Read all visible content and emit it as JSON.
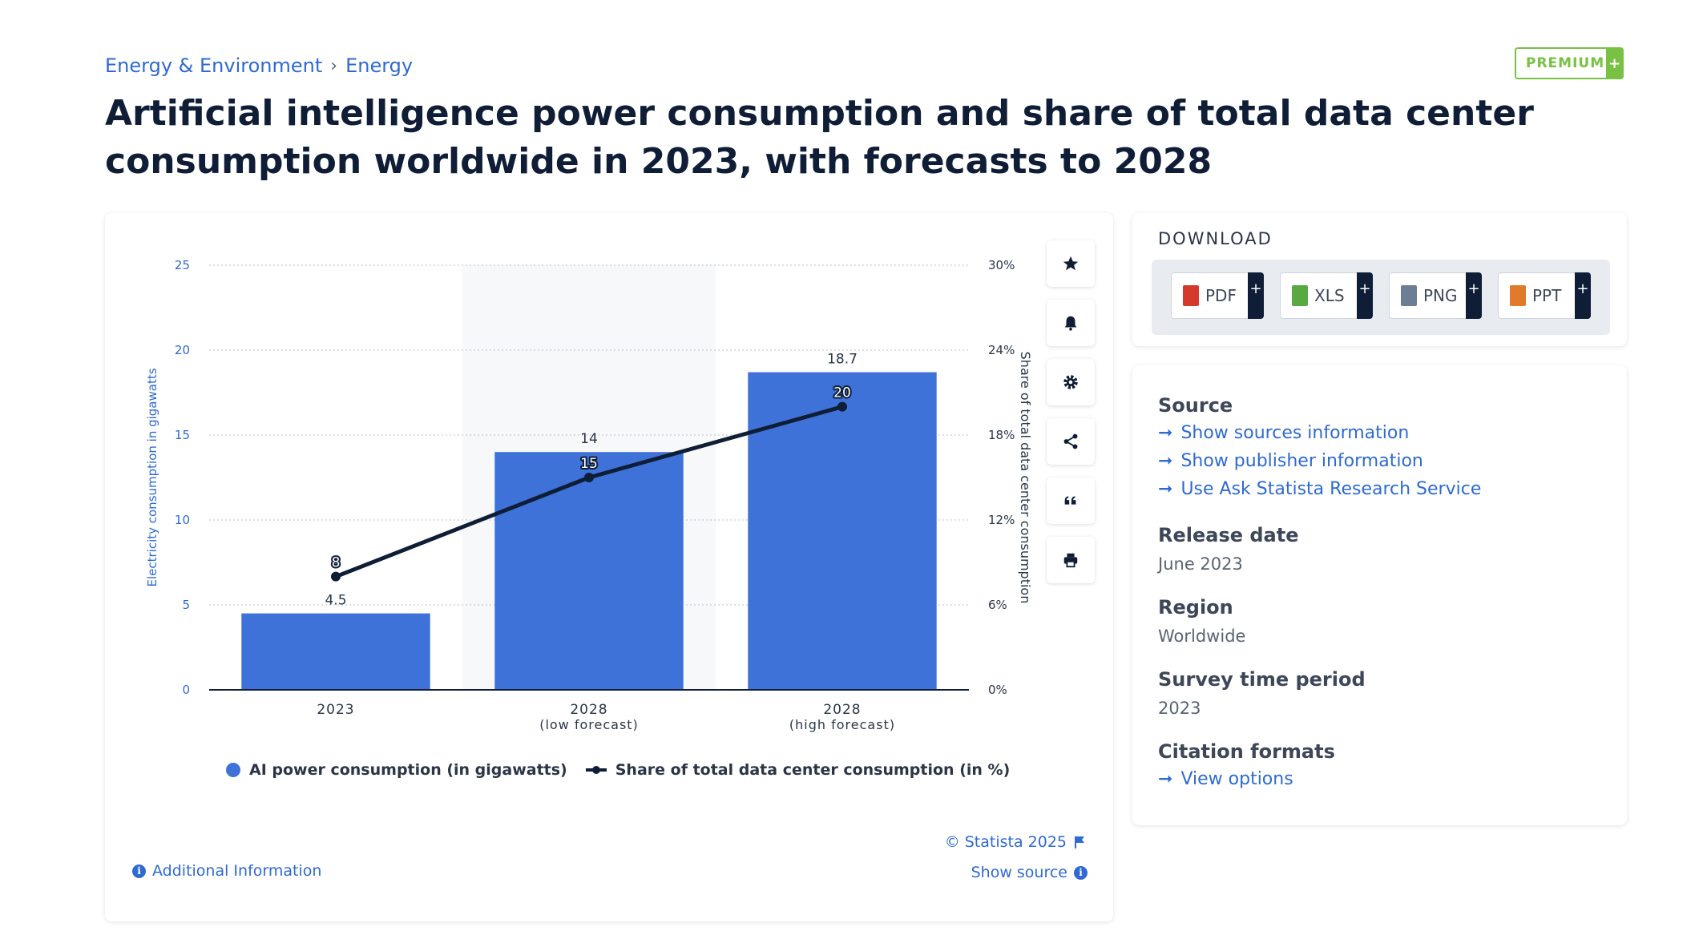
{
  "breadcrumb": {
    "items": [
      "Energy & Environment",
      "Energy"
    ],
    "separator": "›"
  },
  "premium_badge": {
    "label": "PREMIUM",
    "plus": "+"
  },
  "page_title": "Artificial intelligence power consumption and share of total data center consumption worldwide in 2023, with forecasts to 2028",
  "chart_data": {
    "type": "bar",
    "categories": [
      "2023",
      "2028\n(low forecast)",
      "2028\n(high forecast)"
    ],
    "category_lines": [
      [
        "2023"
      ],
      [
        "2028",
        "(low forecast)"
      ],
      [
        "2028",
        "(high forecast)"
      ]
    ],
    "series": [
      {
        "name": "AI power consumption (in gigawatts)",
        "type": "bar",
        "axis": "left",
        "values": [
          4.5,
          14,
          18.7
        ],
        "labels": [
          "4.5",
          "14",
          "18.7"
        ],
        "color": "#3f72d8"
      },
      {
        "name": "Share of total data center consumption (in %)",
        "type": "line",
        "axis": "right",
        "values": [
          8,
          15,
          20
        ],
        "labels": [
          "8",
          "15",
          "20"
        ],
        "color": "#0f1e36"
      }
    ],
    "ylabel": "Electricity consumption in gigawatts",
    "y2label": "Share of total data center consumption",
    "ylim": [
      0,
      25
    ],
    "yticks": [
      "0",
      "5",
      "10",
      "15",
      "20",
      "25"
    ],
    "y2lim": [
      0,
      30
    ],
    "y2ticks": [
      "0%",
      "6%",
      "12%",
      "18%",
      "24%",
      "30%"
    ],
    "highlighted_category": "2028\n(low forecast)",
    "grid": true,
    "legend_position": "bottom"
  },
  "chart_footer": {
    "copyright": "© Statista 2025",
    "show_source": "Show source",
    "additional_info": "Additional Information"
  },
  "toolbar": {
    "icons": [
      "star-icon",
      "bell-icon",
      "gear-icon",
      "share-icon",
      "quote-icon",
      "print-icon"
    ]
  },
  "download": {
    "title": "DOWNLOAD",
    "formats": [
      {
        "label": "PDF",
        "color": "#d33a2c"
      },
      {
        "label": "XLS",
        "color": "#58a942"
      },
      {
        "label": "PNG",
        "color": "#6c7d95"
      },
      {
        "label": "PPT",
        "color": "#e07a2c"
      }
    ],
    "plus": "+"
  },
  "info": {
    "source_title": "Source",
    "source_links": [
      "Show sources information",
      "Show publisher information",
      "Use Ask Statista Research Service"
    ],
    "release_title": "Release date",
    "release_value": "June 2023",
    "region_title": "Region",
    "region_value": "Worldwide",
    "survey_title": "Survey time period",
    "survey_value": "2023",
    "citation_title": "Citation formats",
    "citation_link": "View options"
  }
}
